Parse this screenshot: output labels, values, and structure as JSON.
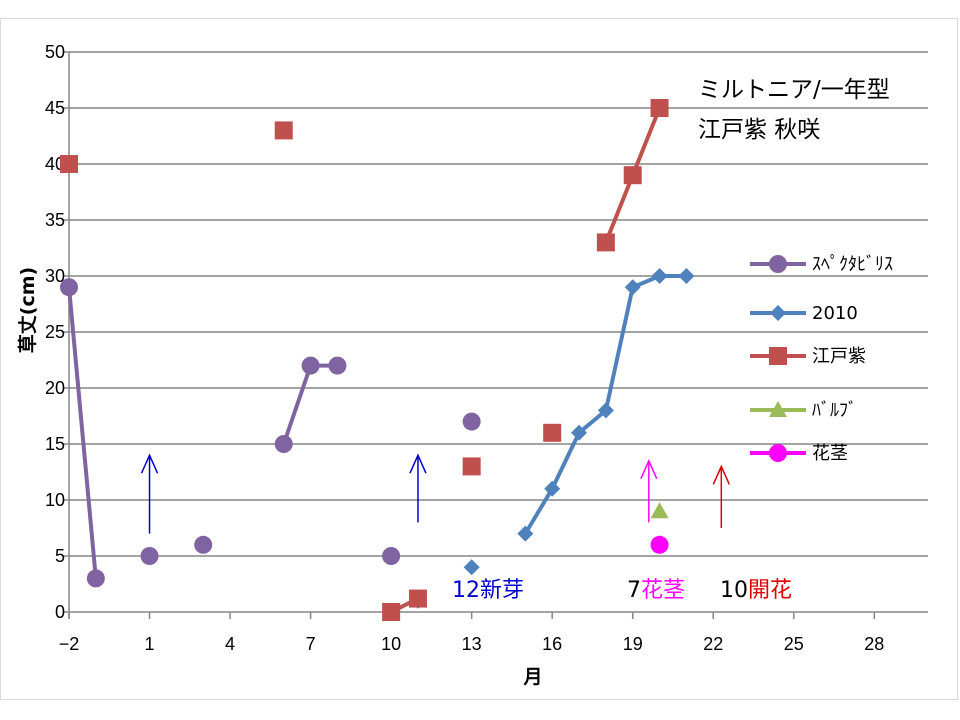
{
  "chart_data": {
    "type": "scatter",
    "title": "",
    "xlabel": "月",
    "ylabel": "草丈(cm)",
    "xlim": [
      -2,
      30
    ],
    "ylim": [
      0,
      50
    ],
    "xticks": [
      -2,
      1,
      4,
      7,
      10,
      13,
      16,
      19,
      22,
      25,
      28
    ],
    "yticks": [
      0,
      5,
      10,
      15,
      20,
      25,
      30,
      35,
      40,
      45,
      50
    ],
    "grid": "horizontal",
    "legend": "right",
    "notes": [
      "ミルトニア/一年型",
      "江戸紫  秋咲"
    ],
    "series": [
      {
        "name": "ｽﾍﾟｸﾀﾋﾞﾘｽ",
        "color": "#8064a2",
        "marker": "circle",
        "segments": [
          [
            [
              -2,
              29
            ],
            [
              -1,
              3
            ]
          ],
          [
            [
              1,
              5
            ]
          ],
          [
            [
              3,
              6
            ]
          ],
          [
            [
              6,
              15
            ],
            [
              7,
              22
            ],
            [
              8,
              22
            ]
          ],
          [
            [
              10,
              5
            ]
          ],
          [
            [
              13,
              17
            ]
          ]
        ]
      },
      {
        "name": "2010",
        "color": "#4f81bd",
        "marker": "diamond",
        "segments": [
          [
            [
              11,
              1
            ]
          ],
          [
            [
              13,
              4
            ]
          ],
          [
            [
              15,
              7
            ],
            [
              16,
              11
            ],
            [
              17,
              16
            ],
            [
              18,
              18
            ],
            [
              19,
              29
            ],
            [
              20,
              30
            ],
            [
              21,
              30
            ]
          ]
        ]
      },
      {
        "name": "江戸紫",
        "color": "#c0504d",
        "marker": "square",
        "segments": [
          [
            [
              -2,
              40
            ]
          ],
          [
            [
              6,
              43
            ]
          ],
          [
            [
              10,
              0
            ],
            [
              11,
              1.2
            ]
          ],
          [
            [
              13,
              13
            ]
          ],
          [
            [
              16,
              16
            ]
          ],
          [
            [
              18,
              33
            ],
            [
              19,
              39
            ],
            [
              20,
              45
            ]
          ]
        ]
      },
      {
        "name": "ﾊﾞﾙﾌﾞ",
        "color": "#9bbb59",
        "marker": "triangle",
        "segments": [
          [
            [
              20,
              9
            ]
          ]
        ]
      },
      {
        "name": "花茎",
        "color": "#ff00ff",
        "marker": "circle",
        "segments": [
          [
            [
              20,
              6
            ]
          ]
        ]
      }
    ],
    "arrows": [
      {
        "x": 1,
        "y_from": 7,
        "y_to": 14,
        "color": "#0000cc"
      },
      {
        "x": 11,
        "y_from": 8,
        "y_to": 14,
        "color": "#0000cc"
      },
      {
        "x": 19.6,
        "y_from": 8,
        "y_to": 13.5,
        "color": "#ff00ff"
      },
      {
        "x": 22.3,
        "y_from": 7.5,
        "y_to": 13,
        "color": "#e00000"
      }
    ],
    "annotations": [
      {
        "parts": [
          {
            "text": "12新芽",
            "color": "#0000cc"
          }
        ]
      },
      {
        "parts": [
          {
            "text": "7",
            "color": "#000000"
          },
          {
            "text": "花茎",
            "color": "#ff00ff"
          }
        ]
      },
      {
        "parts": [
          {
            "text": "10",
            "color": "#000000"
          },
          {
            "text": "開花",
            "color": "#e00000"
          }
        ]
      }
    ]
  }
}
